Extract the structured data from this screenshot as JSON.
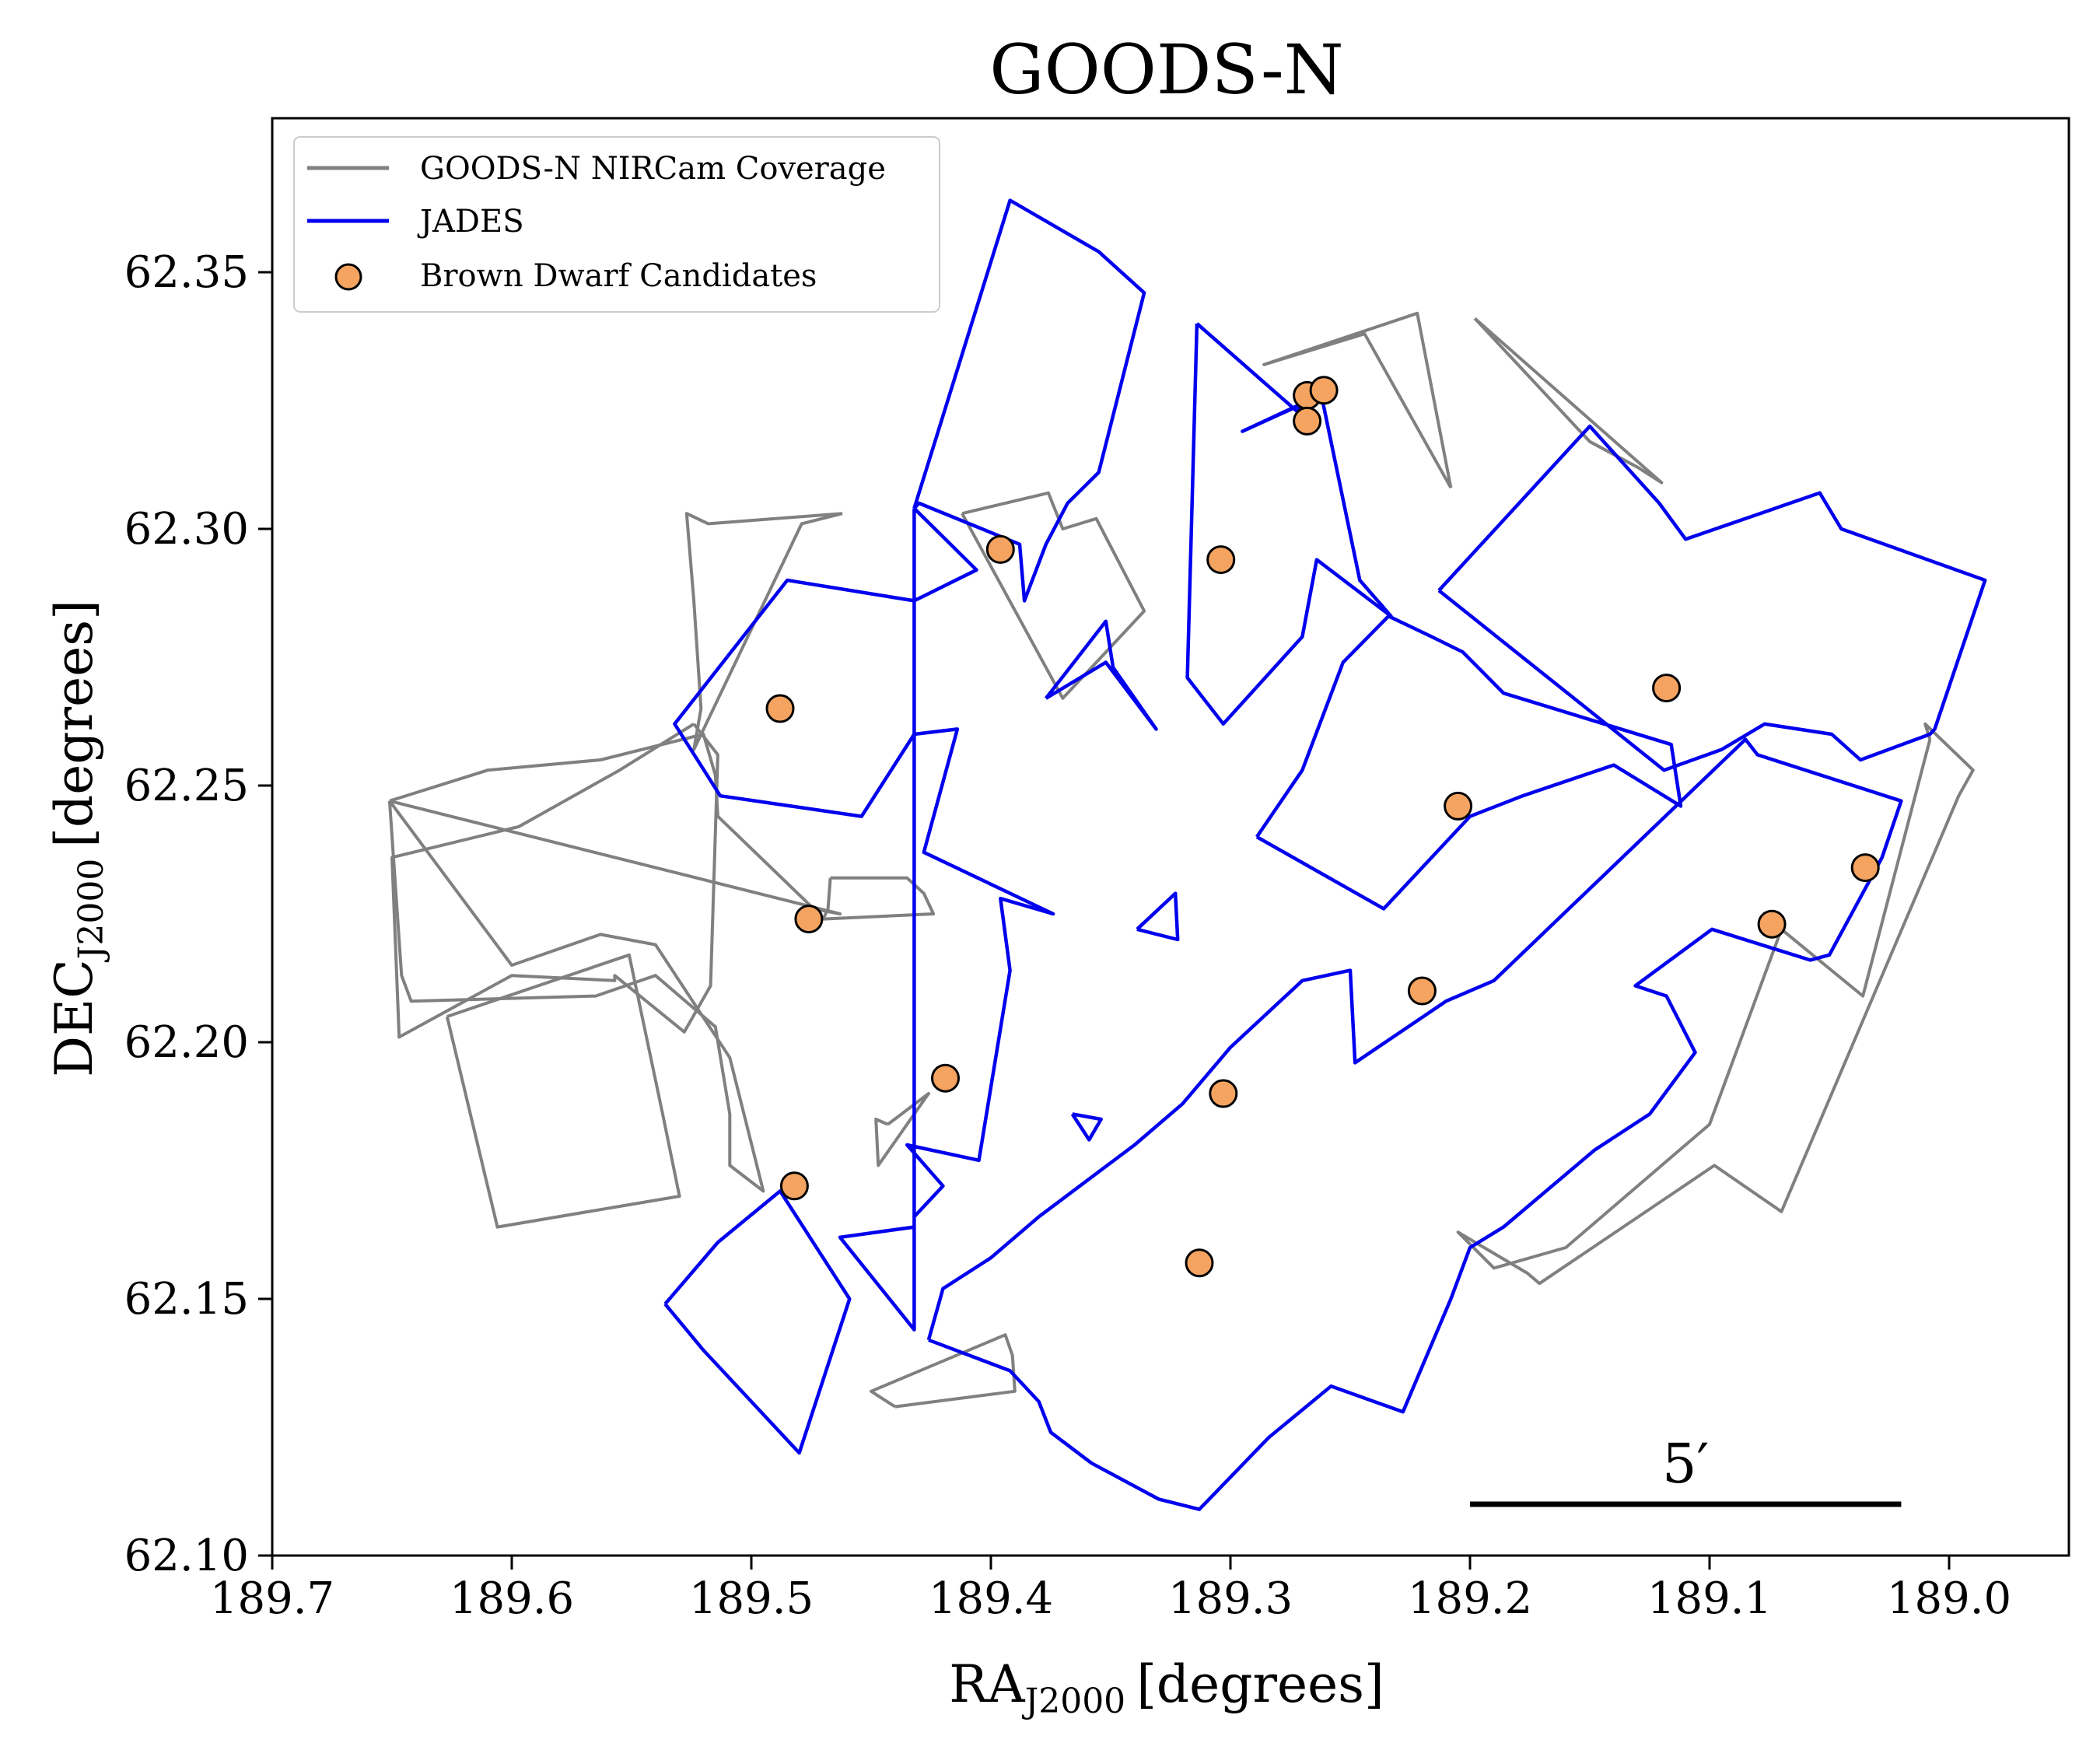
{
  "chart_data": {
    "type": "scatter",
    "title": "GOODS-N",
    "xlabel": "RA",
    "xlabel_sub": "J2000",
    "xlabel_unit": "[degrees]",
    "ylabel": "DEC",
    "ylabel_sub": "J2000",
    "ylabel_unit": "[degrees]",
    "xlim": [
      189.7,
      188.95
    ],
    "ylim": [
      62.1,
      62.38
    ],
    "x_inverted": true,
    "x_ticks": [
      "189.7",
      "189.6",
      "189.5",
      "189.4",
      "189.3",
      "189.2",
      "189.1",
      "189.0"
    ],
    "y_ticks": [
      "62.10",
      "62.15",
      "62.20",
      "62.25",
      "62.30",
      "62.35"
    ],
    "grid": false,
    "legend_position": "top-left",
    "colors": {
      "coverage": "#808080",
      "jades": "#0000ee",
      "candidates_fill": "#f4a460",
      "candidates_edge": "#000000"
    },
    "legend": [
      {
        "label": "GOODS-N NIRCam Coverage",
        "kind": "line",
        "color": "#808080"
      },
      {
        "label": "JADES",
        "kind": "line",
        "color": "#0000ee"
      },
      {
        "label": "Brown Dwarf Candidates",
        "kind": "marker",
        "color": "#f4a460"
      }
    ],
    "scale_bar": {
      "label": "5′",
      "ra_start": 189.2,
      "ra_end": 189.02,
      "dec": 62.11
    },
    "candidates": [
      {
        "ra": 189.488,
        "dec": 62.265
      },
      {
        "ra": 189.476,
        "dec": 62.224
      },
      {
        "ra": 189.482,
        "dec": 62.172
      },
      {
        "ra": 189.396,
        "dec": 62.296
      },
      {
        "ra": 189.419,
        "dec": 62.193
      },
      {
        "ra": 189.304,
        "dec": 62.294
      },
      {
        "ra": 189.303,
        "dec": 62.19
      },
      {
        "ra": 189.313,
        "dec": 62.157
      },
      {
        "ra": 189.268,
        "dec": 62.326
      },
      {
        "ra": 189.261,
        "dec": 62.327
      },
      {
        "ra": 189.268,
        "dec": 62.321
      },
      {
        "ra": 189.205,
        "dec": 62.246
      },
      {
        "ra": 189.22,
        "dec": 62.21
      },
      {
        "ra": 189.118,
        "dec": 62.269
      },
      {
        "ra": 189.074,
        "dec": 62.223
      },
      {
        "ra": 189.035,
        "dec": 62.234
      }
    ],
    "coverage_polygons": [
      [
        [
          189.412,
          62.303
        ],
        [
          189.376,
          62.307
        ],
        [
          189.37,
          62.3
        ],
        [
          189.356,
          62.302
        ],
        [
          189.336,
          62.284
        ],
        [
          189.37,
          62.267
        ],
        [
          189.412,
          62.303
        ]
      ],
      [
        [
          189.462,
          62.303
        ],
        [
          189.518,
          62.301
        ],
        [
          189.527,
          62.303
        ],
        [
          189.524,
          62.286
        ],
        [
          189.521,
          62.265
        ],
        [
          189.524,
          62.257
        ],
        [
          189.479,
          62.301
        ],
        [
          189.462,
          62.303
        ]
      ],
      [
        [
          189.524,
          62.262
        ],
        [
          189.555,
          62.253
        ],
        [
          189.597,
          62.242
        ],
        [
          189.65,
          62.236
        ],
        [
          189.647,
          62.201
        ],
        [
          189.6,
          62.213
        ],
        [
          189.557,
          62.212
        ],
        [
          189.557,
          62.213
        ],
        [
          189.528,
          62.202
        ],
        [
          189.517,
          62.211
        ],
        [
          189.514,
          62.256
        ],
        [
          189.524,
          62.262
        ]
      ],
      [
        [
          189.651,
          62.247
        ],
        [
          189.61,
          62.253
        ],
        [
          189.563,
          62.255
        ],
        [
          189.52,
          62.26
        ],
        [
          189.515,
          62.252
        ],
        [
          189.514,
          62.244
        ],
        [
          189.474,
          62.226
        ],
        [
          189.463,
          62.225
        ],
        [
          189.651,
          62.247
        ]
      ],
      [
        [
          189.651,
          62.247
        ],
        [
          189.646,
          62.213
        ],
        [
          189.642,
          62.208
        ],
        [
          189.565,
          62.209
        ],
        [
          189.54,
          62.213
        ],
        [
          189.515,
          62.203
        ],
        [
          189.509,
          62.186
        ],
        [
          189.509,
          62.176
        ],
        [
          189.495,
          62.171
        ],
        [
          189.509,
          62.197
        ],
        [
          189.54,
          62.219
        ],
        [
          189.563,
          62.221
        ],
        [
          189.6,
          62.215
        ],
        [
          189.651,
          62.247
        ]
      ],
      [
        [
          189.627,
          62.205
        ],
        [
          189.551,
          62.217
        ],
        [
          189.537,
          62.186
        ],
        [
          189.53,
          62.17
        ],
        [
          189.606,
          62.164
        ],
        [
          189.627,
          62.205
        ]
      ],
      [
        [
          189.467,
          62.232
        ],
        [
          189.435,
          62.232
        ],
        [
          189.428,
          62.229
        ],
        [
          189.424,
          62.225
        ],
        [
          189.47,
          62.224
        ],
        [
          189.468,
          62.226
        ],
        [
          189.467,
          62.232
        ]
      ],
      [
        [
          189.443,
          62.184
        ],
        [
          189.426,
          62.19
        ],
        [
          189.447,
          62.176
        ],
        [
          189.448,
          62.185
        ],
        [
          189.443,
          62.184
        ]
      ],
      [
        [
          189.44,
          62.129
        ],
        [
          189.39,
          62.132
        ],
        [
          189.391,
          62.139
        ],
        [
          189.394,
          62.143
        ],
        [
          189.45,
          62.132
        ],
        [
          189.44,
          62.129
        ]
      ],
      [
        [
          189.208,
          62.308
        ],
        [
          189.244,
          62.338
        ],
        [
          189.286,
          62.332
        ],
        [
          189.222,
          62.342
        ],
        [
          189.208,
          62.308
        ]
      ],
      [
        [
          189.198,
          62.341
        ],
        [
          189.15,
          62.317
        ],
        [
          189.13,
          62.312
        ],
        [
          189.12,
          62.309
        ],
        [
          189.198,
          62.341
        ]
      ],
      [
        [
          189.008,
          62.259
        ],
        [
          189.01,
          62.262
        ],
        [
          188.99,
          62.253
        ],
        [
          188.996,
          62.248
        ],
        [
          189.07,
          62.167
        ],
        [
          189.098,
          62.176
        ],
        [
          189.171,
          62.153
        ],
        [
          189.176,
          62.155
        ],
        [
          189.205,
          62.163
        ],
        [
          189.19,
          62.156
        ],
        [
          189.16,
          62.16
        ],
        [
          189.1,
          62.184
        ],
        [
          189.07,
          62.222
        ],
        [
          189.036,
          62.209
        ],
        [
          189.008,
          62.259
        ]
      ]
    ],
    "jades_polygons": [
      [
        [
          189.432,
          62.304
        ],
        [
          189.392,
          62.364
        ],
        [
          189.355,
          62.354
        ],
        [
          189.336,
          62.346
        ],
        [
          189.355,
          62.311
        ],
        [
          189.368,
          62.305
        ],
        [
          189.377,
          62.297
        ],
        [
          189.386,
          62.286
        ],
        [
          189.388,
          62.297
        ],
        [
          189.43,
          62.305
        ],
        [
          189.432,
          62.304
        ]
      ],
      [
        [
          189.432,
          62.304
        ],
        [
          189.406,
          62.292
        ],
        [
          189.432,
          62.286
        ],
        [
          189.485,
          62.29
        ],
        [
          189.532,
          62.262
        ],
        [
          189.513,
          62.248
        ],
        [
          189.454,
          62.244
        ],
        [
          189.432,
          62.26
        ],
        [
          189.414,
          62.261
        ],
        [
          189.428,
          62.237
        ],
        [
          189.374,
          62.225
        ],
        [
          189.396,
          62.228
        ],
        [
          189.392,
          62.214
        ],
        [
          189.405,
          62.177
        ],
        [
          189.435,
          62.18
        ],
        [
          189.42,
          62.172
        ],
        [
          189.432,
          62.166
        ],
        [
          189.432,
          62.144
        ],
        [
          189.463,
          62.162
        ],
        [
          189.432,
          62.164
        ],
        [
          189.432,
          62.304
        ]
      ],
      [
        [
          189.314,
          62.34
        ],
        [
          189.27,
          62.322
        ],
        [
          189.272,
          62.324
        ],
        [
          189.295,
          62.319
        ],
        [
          189.262,
          62.326
        ],
        [
          189.246,
          62.29
        ],
        [
          189.233,
          62.283
        ],
        [
          189.264,
          62.294
        ],
        [
          189.27,
          62.279
        ],
        [
          189.303,
          62.262
        ],
        [
          189.318,
          62.271
        ],
        [
          189.314,
          62.34
        ]
      ],
      [
        [
          189.377,
          62.267
        ],
        [
          189.352,
          62.282
        ],
        [
          189.349,
          62.273
        ],
        [
          189.331,
          62.261
        ],
        [
          189.352,
          62.274
        ],
        [
          189.377,
          62.267
        ]
      ],
      [
        [
          189.289,
          62.24
        ],
        [
          189.27,
          62.253
        ],
        [
          189.253,
          62.274
        ],
        [
          189.234,
          62.283
        ],
        [
          189.216,
          62.279
        ],
        [
          189.203,
          62.276
        ],
        [
          189.186,
          62.268
        ],
        [
          189.116,
          62.258
        ],
        [
          189.112,
          62.246
        ],
        [
          189.14,
          62.254
        ],
        [
          189.178,
          62.248
        ],
        [
          189.2,
          62.244
        ],
        [
          189.236,
          62.226
        ],
        [
          189.289,
          62.24
        ]
      ],
      [
        [
          189.213,
          62.288
        ],
        [
          189.15,
          62.32
        ],
        [
          189.121,
          62.305
        ],
        [
          189.11,
          62.298
        ],
        [
          189.054,
          62.307
        ],
        [
          189.045,
          62.3
        ],
        [
          188.985,
          62.29
        ],
        [
          189.006,
          62.261
        ],
        [
          189.008,
          62.26
        ],
        [
          189.037,
          62.255
        ],
        [
          189.049,
          62.26
        ],
        [
          189.077,
          62.262
        ],
        [
          189.095,
          62.257
        ],
        [
          189.119,
          62.253
        ],
        [
          189.213,
          62.288
        ]
      ],
      [
        [
          189.339,
          62.222
        ],
        [
          189.323,
          62.229
        ],
        [
          189.322,
          62.22
        ],
        [
          189.339,
          62.222
        ]
      ],
      [
        [
          189.366,
          62.186
        ],
        [
          189.354,
          62.185
        ],
        [
          189.359,
          62.181
        ],
        [
          189.366,
          62.186
        ]
      ],
      [
        [
          189.536,
          62.149
        ],
        [
          189.514,
          62.161
        ],
        [
          189.488,
          62.171
        ],
        [
          189.459,
          62.15
        ],
        [
          189.48,
          62.12
        ],
        [
          189.5,
          62.13
        ],
        [
          189.52,
          62.14
        ],
        [
          189.536,
          62.149
        ]
      ],
      [
        [
          189.426,
          62.142
        ],
        [
          189.392,
          62.136
        ],
        [
          189.38,
          62.13
        ],
        [
          189.375,
          62.124
        ],
        [
          189.358,
          62.118
        ],
        [
          189.33,
          62.111
        ],
        [
          189.313,
          62.109
        ],
        [
          189.284,
          62.123
        ],
        [
          189.258,
          62.133
        ],
        [
          189.228,
          62.128
        ],
        [
          189.208,
          62.15
        ],
        [
          189.2,
          62.16
        ],
        [
          189.186,
          62.164
        ],
        [
          189.148,
          62.179
        ],
        [
          189.125,
          62.186
        ],
        [
          189.106,
          62.198
        ],
        [
          189.118,
          62.209
        ],
        [
          189.131,
          62.211
        ],
        [
          189.099,
          62.222
        ],
        [
          189.058,
          62.216
        ],
        [
          189.05,
          62.217
        ],
        [
          189.028,
          62.236
        ],
        [
          189.02,
          62.247
        ],
        [
          189.08,
          62.256
        ],
        [
          189.085,
          62.259
        ],
        [
          189.19,
          62.212
        ],
        [
          189.21,
          62.208
        ],
        [
          189.248,
          62.196
        ],
        [
          189.25,
          62.214
        ],
        [
          189.27,
          62.212
        ],
        [
          189.3,
          62.199
        ],
        [
          189.32,
          62.188
        ],
        [
          189.34,
          62.18
        ],
        [
          189.38,
          62.166
        ],
        [
          189.4,
          62.158
        ],
        [
          189.42,
          62.152
        ],
        [
          189.426,
          62.142
        ]
      ]
    ]
  }
}
